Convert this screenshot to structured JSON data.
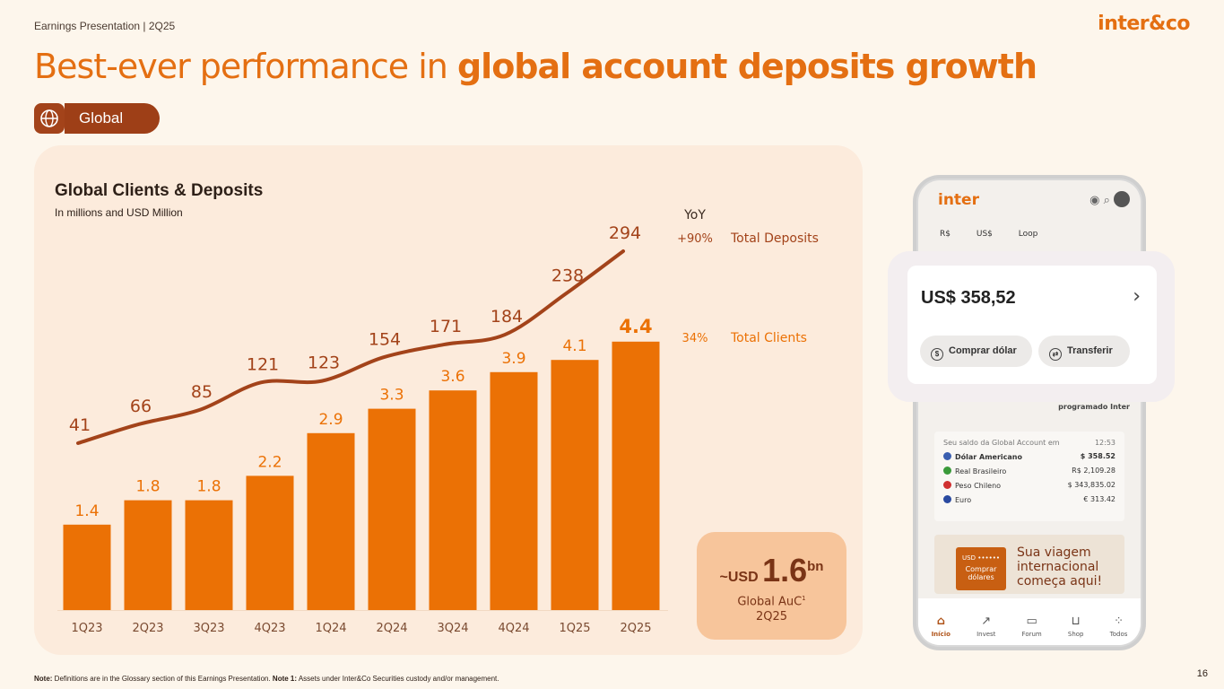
{
  "header": {
    "small_title": "Earnings Presentation | 2Q25",
    "logo": "inter&co"
  },
  "title": {
    "prefix": "Best-ever performance in ",
    "bold": "global account deposits growth"
  },
  "badge": {
    "label": "Global",
    "icon": "globe-icon"
  },
  "chart_header": {
    "title": "Global Clients & Deposits",
    "subtitle": "In millions and USD Million"
  },
  "chart_data": {
    "type": "bar",
    "categories": [
      "1Q23",
      "2Q23",
      "3Q23",
      "4Q23",
      "1Q24",
      "2Q24",
      "3Q24",
      "4Q24",
      "1Q25",
      "2Q25"
    ],
    "series": [
      {
        "name": "Total Clients",
        "type": "bar",
        "values": [
          1.4,
          1.8,
          1.8,
          2.2,
          2.9,
          3.3,
          3.6,
          3.9,
          4.1,
          4.4
        ],
        "labels": [
          "1.4",
          "1.8",
          "1.8",
          "2.2",
          "2.9",
          "3.3",
          "3.6",
          "3.9",
          "4.1",
          "4.4"
        ],
        "color": "#eb7105"
      },
      {
        "name": "Total Deposits",
        "type": "line",
        "values": [
          41,
          66,
          85,
          121,
          123,
          154,
          171,
          184,
          238,
          294
        ],
        "color": "#a3431a"
      }
    ],
    "yoy_header": "YoY",
    "legend": [
      {
        "yoy": "+90%",
        "name": "Total Deposits"
      },
      {
        "yoy": "34%",
        "name": "Total Clients"
      }
    ]
  },
  "auc": {
    "prefix": "~USD",
    "value": "1.6",
    "suffix": "bn",
    "label_line1": "Global AuC",
    "footnote_mark": "1",
    "label_line2": "2Q25"
  },
  "phone": {
    "logo": "inter",
    "tabs": [
      "R$",
      "US$",
      "Loop"
    ],
    "popup_amount": "US$ 358,52",
    "buy_button": "Comprar dólar",
    "transfer_button": "Transferir",
    "programado": "programado  Inter",
    "balance_header": "Seu saldo da Global Account em",
    "balance_time": "12:53",
    "balances": [
      {
        "name": "Dólar Americano",
        "value": "$ 358.52",
        "color": "#3b5fb0"
      },
      {
        "name": "Real Brasileiro",
        "value": "R$ 2,109.28",
        "color": "#3a9a3a"
      },
      {
        "name": "Peso Chileno",
        "value": "$ 343,835.02",
        "color": "#d03030"
      },
      {
        "name": "Euro",
        "value": "€ 313.42",
        "color": "#2a4aa0"
      }
    ],
    "card_line1": "USD ••••••",
    "card_line2": "Comprar",
    "card_line3": "dólares",
    "banner_line1": "Sua viagem",
    "banner_line2": "internacional",
    "banner_line3": "começa aqui!",
    "nav": [
      "Início",
      "Invest",
      "Forum",
      "Shop",
      "Todos"
    ]
  },
  "footer": {
    "note_label": "Note:",
    "note_text": " Definitions are in the Glossary section of this Earnings Presentation. ",
    "note1_label": "Note 1:",
    "note1_text": " Assets under Inter&Co Securities custody and/or management.",
    "page_number": "16"
  }
}
